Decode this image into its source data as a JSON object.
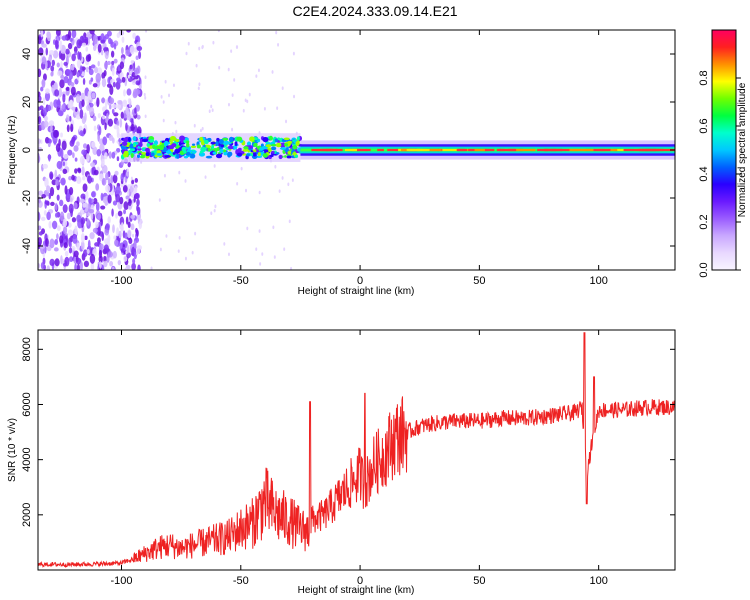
{
  "title": "C2E4.2024.333.09.14.E21",
  "chart_data": [
    {
      "type": "heatmap",
      "xlabel": "Height of straight line (km)",
      "ylabel": "Frequency (Hz)",
      "xlim": [
        -135,
        132
      ],
      "ylim": [
        -50,
        50
      ],
      "xticks": [
        -100,
        -50,
        0,
        50,
        100
      ],
      "yticks": [
        -40,
        -20,
        0,
        20,
        40
      ],
      "colorbar": {
        "label": "Normalized spectral amplitude",
        "range": [
          0,
          1
        ],
        "ticks": [
          "0.0",
          "0.2",
          "0.4",
          "0.6",
          "0.8"
        ],
        "colors": [
          "#f8f4ff",
          "#e8d8ff",
          "#c9a8ff",
          "#9a5cff",
          "#6a1aff",
          "#2a00ff",
          "#0060ff",
          "#00c8ff",
          "#00ffcc",
          "#00ff40",
          "#70ff00",
          "#ffff00",
          "#ff9000",
          "#ff2020",
          "#ff0060"
        ]
      },
      "regions": [
        {
          "x": [
            -135,
            -100
          ],
          "description": "broadband noise",
          "amplitude": 0.15
        },
        {
          "x": [
            -100,
            -25
          ],
          "y_center": 1,
          "y_halfwidth": 4,
          "amplitude": 0.5
        },
        {
          "x": [
            -25,
            132
          ],
          "y_center": 0,
          "y_halfwidth": 2,
          "amplitude": 0.9
        }
      ]
    },
    {
      "type": "line",
      "xlabel": "Height of straight line (km)",
      "ylabel": "SNR (10 * v/v)",
      "xlim": [
        -135,
        132
      ],
      "ylim": [
        0,
        8700
      ],
      "xticks": [
        -100,
        -50,
        0,
        50,
        100
      ],
      "yticks": [
        2000,
        4000,
        6000,
        8000
      ],
      "color": "#ee2222",
      "x": [
        -135,
        -120,
        -110,
        -100,
        -95,
        -90,
        -85,
        -80,
        -75,
        -70,
        -65,
        -60,
        -55,
        -50,
        -45,
        -40,
        -35,
        -30,
        -25,
        -22,
        -20,
        -15,
        -10,
        -5,
        0,
        2,
        5,
        10,
        15,
        20,
        25,
        30,
        40,
        50,
        60,
        70,
        80,
        90,
        93,
        95,
        97,
        100,
        110,
        120,
        132
      ],
      "y": [
        200,
        200,
        220,
        250,
        400,
        600,
        800,
        900,
        800,
        900,
        1000,
        1100,
        1200,
        1500,
        1700,
        2500,
        2000,
        1800,
        1500,
        1400,
        1800,
        2000,
        2500,
        3000,
        3500,
        3000,
        3700,
        4200,
        4800,
        5000,
        5200,
        5300,
        5400,
        5400,
        5500,
        5500,
        5600,
        5700,
        5900,
        3500,
        4500,
        5800,
        5800,
        5900,
        5900
      ],
      "spikes": [
        {
          "x": -21,
          "y": 6100
        },
        {
          "x": 2,
          "y": 6400
        },
        {
          "x": 94,
          "y": 8600
        },
        {
          "x": 95,
          "y": 2400
        },
        {
          "x": 98,
          "y": 7000
        }
      ]
    }
  ]
}
